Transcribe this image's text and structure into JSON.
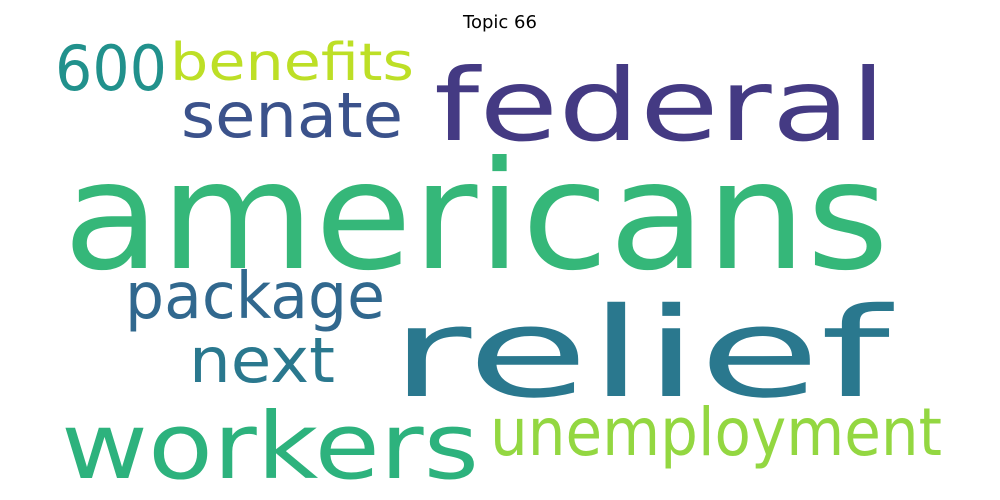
{
  "title": "Topic 66",
  "words": [
    {
      "text": "americans",
      "color": "#35b779"
    },
    {
      "text": "relief",
      "color": "#2a788e"
    },
    {
      "text": "federal",
      "color": "#443a83"
    },
    {
      "text": "workers",
      "color": "#2db27d"
    },
    {
      "text": "unemployment",
      "color": "#93d741"
    },
    {
      "text": "package",
      "color": "#31688e"
    },
    {
      "text": "senate",
      "color": "#3b528b"
    },
    {
      "text": "benefits",
      "color": "#bddf26"
    },
    {
      "text": "600",
      "color": "#21918c"
    },
    {
      "text": "next",
      "color": "#2a788e"
    }
  ]
}
